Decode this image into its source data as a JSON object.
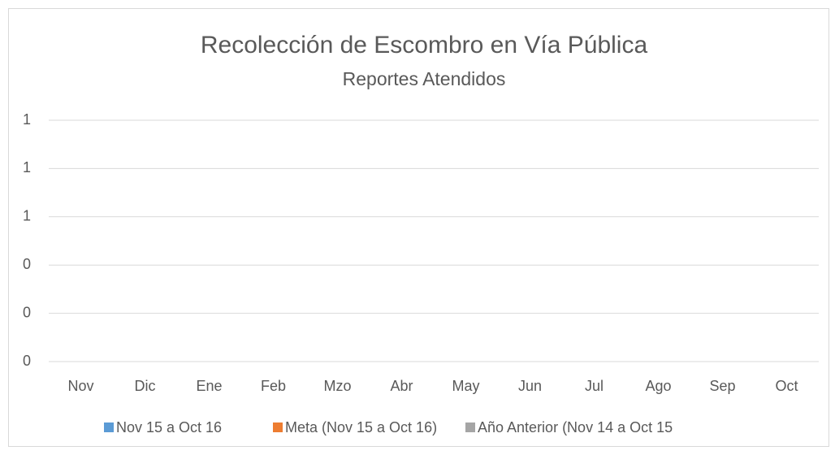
{
  "chart_data": {
    "type": "bar",
    "title": "Recolección de Escombro en Vía Pública",
    "subtitle": "Reportes Atendidos",
    "categories": [
      "Nov",
      "Dic",
      "Ene",
      "Feb",
      "Mzo",
      "Abr",
      "May",
      "Jun",
      "Jul",
      "Ago",
      "Sep",
      "Oct"
    ],
    "series": [
      {
        "name": "Nov 15 a Oct 16",
        "color": "#5b9bd5",
        "values": [
          0,
          0,
          0,
          0,
          0,
          0,
          0,
          0,
          0,
          0,
          0,
          0
        ]
      },
      {
        "name": "Meta (Nov 15 a Oct 16)",
        "color": "#ed7d31",
        "values": [
          0,
          0,
          0,
          0,
          0,
          0,
          0,
          0,
          0,
          0,
          0,
          0
        ]
      },
      {
        "name": "Año Anterior (Nov 14 a Oct 15",
        "color": "#a5a5a5",
        "values": [
          0,
          0,
          0,
          0,
          0,
          0,
          0,
          0,
          0,
          0,
          0,
          0
        ]
      }
    ],
    "ylim": [
      0,
      1
    ],
    "yticks": [
      0,
      {
        "value": 0.2,
        "label": "0"
      },
      {
        "value": 0.4,
        "label": "0"
      },
      {
        "value": 0.6,
        "label": "1"
      },
      {
        "value": 0.8,
        "label": "1"
      },
      1
    ],
    "grid": true,
    "legend": "bottom"
  }
}
